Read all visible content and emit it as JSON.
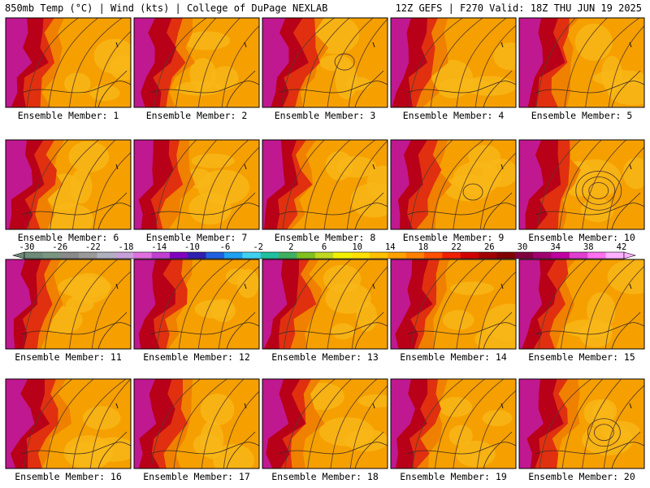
{
  "header": {
    "left": "850mb Temp (°C) | Wind (kts) | College of DuPage NEXLAB",
    "right": "12Z GEFS | F270 Valid: 18Z THU JUN 19 2025"
  },
  "panels": [
    {
      "label": "Ensemble Member: 1",
      "heat": 0.55,
      "highs": []
    },
    {
      "label": "Ensemble Member: 2",
      "heat": 0.55,
      "highs": []
    },
    {
      "label": "Ensemble Member: 3",
      "heat": 0.65,
      "highs": [
        1
      ]
    },
    {
      "label": "Ensemble Member: 4",
      "heat": 0.5,
      "highs": []
    },
    {
      "label": "Ensemble Member: 5",
      "heat": 0.6,
      "highs": []
    },
    {
      "label": "Ensemble Member: 6",
      "heat": 0.55,
      "highs": []
    },
    {
      "label": "Ensemble Member: 7",
      "heat": 0.45,
      "highs": []
    },
    {
      "label": "Ensemble Member: 8",
      "heat": 0.4,
      "highs": []
    },
    {
      "label": "Ensemble Member: 9",
      "heat": 0.5,
      "highs": [
        1
      ]
    },
    {
      "label": "Ensemble Member: 10",
      "heat": 0.6,
      "highs": [
        3
      ]
    },
    {
      "label": "Ensemble Member: 11",
      "heat": 0.45,
      "highs": []
    },
    {
      "label": "Ensemble Member: 12",
      "heat": 0.55,
      "highs": []
    },
    {
      "label": "Ensemble Member: 13",
      "heat": 0.5,
      "highs": []
    },
    {
      "label": "Ensemble Member: 14",
      "heat": 0.55,
      "highs": []
    },
    {
      "label": "Ensemble Member: 15",
      "heat": 0.5,
      "highs": []
    },
    {
      "label": "Ensemble Member: 16",
      "heat": 0.6,
      "highs": []
    },
    {
      "label": "Ensemble Member: 17",
      "heat": 0.55,
      "highs": []
    },
    {
      "label": "Ensemble Member: 18",
      "heat": 0.55,
      "highs": []
    },
    {
      "label": "Ensemble Member: 19",
      "heat": 0.5,
      "highs": []
    },
    {
      "label": "Ensemble Member: 20",
      "heat": 0.55,
      "highs": [
        2
      ]
    }
  ],
  "colorbar": {
    "labels": [
      "-30",
      "-26",
      "-22",
      "-18",
      "-14",
      "-10",
      "-6",
      "-2",
      "2",
      "6",
      "10",
      "14",
      "18",
      "22",
      "26",
      "30",
      "34",
      "38",
      "42"
    ],
    "colors": [
      "#6e8a78",
      "#7a9680",
      "#8a8a8a",
      "#9a9a9a",
      "#b0b0c0",
      "#c8a0d8",
      "#e070e0",
      "#c040d0",
      "#8000c0",
      "#3020b0",
      "#2060e0",
      "#20a0f0",
      "#40d0f0",
      "#20c0a0",
      "#40b060",
      "#80c020",
      "#c0d820",
      "#f0f000",
      "#ffe000",
      "#ffc000",
      "#ffa000",
      "#ff8000",
      "#ff5000",
      "#ee2000",
      "#d00000",
      "#a00000",
      "#800000",
      "#800040",
      "#a00070",
      "#c000a0",
      "#e040d0",
      "#ff70f0",
      "#ffb0ff"
    ]
  },
  "palette": {
    "orange": "#f5a000",
    "lightorange": "#f8b818",
    "darkorange": "#f08000",
    "red": "#e03010",
    "darkred": "#b80018",
    "magenta": "#c01890",
    "contour": "#5a3a2a"
  }
}
